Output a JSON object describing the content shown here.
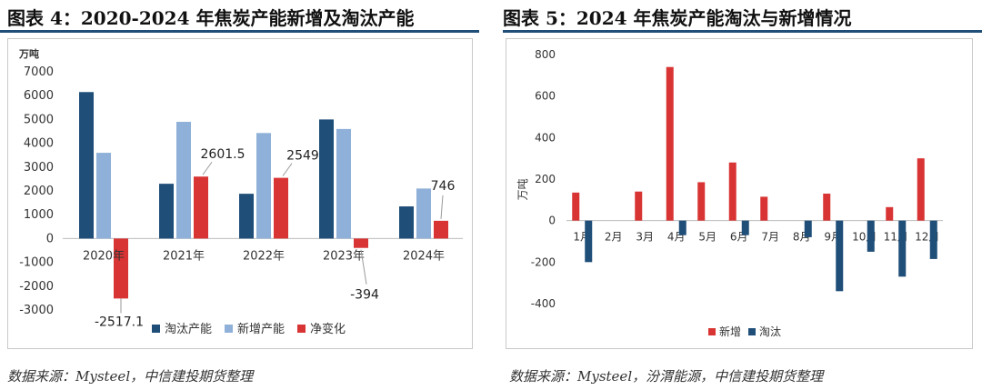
{
  "left": {
    "title": "图表 4：2020-2024 年焦炭产能新增及淘汰产能",
    "source": "数据来源：Mysteel，中信建投期货整理",
    "chart_data": {
      "type": "bar",
      "unit": "万吨",
      "categories": [
        "2020年",
        "2021年",
        "2022年",
        "2023年",
        "2024年"
      ],
      "series": [
        {
          "name": "淘汰产能",
          "color": "#1f4e79",
          "values": [
            6150,
            2300,
            1880,
            5000,
            1350
          ]
        },
        {
          "name": "新增产能",
          "color": "#8fb0d8",
          "values": [
            3600,
            4900,
            4430,
            4600,
            2100
          ]
        },
        {
          "name": "净变化",
          "color": "#d93434",
          "values": [
            -2517.1,
            2601.5,
            2549,
            -394,
            746
          ]
        }
      ],
      "callouts": [
        "-2517.1",
        "2601.5",
        "2549",
        "-394",
        "746"
      ],
      "yticks": [
        -3000,
        -2000,
        -1000,
        0,
        1000,
        2000,
        3000,
        4000,
        5000,
        6000,
        7000
      ],
      "ylim": [
        -3000,
        7000
      ],
      "legend": "bottom"
    }
  },
  "right": {
    "title": "图表 5：2024 年焦炭产能淘汰与新增情况",
    "source": "数据来源：Mysteel，汾渭能源，中信建投期货整理",
    "chart_data": {
      "type": "bar",
      "ylabel": "万吨",
      "categories": [
        "1月",
        "2月",
        "3月",
        "4月",
        "5月",
        "6月",
        "7月",
        "8月",
        "9月",
        "10月",
        "11月",
        "12月"
      ],
      "series": [
        {
          "name": "新增",
          "color": "#d93434",
          "values": [
            135,
            0,
            140,
            740,
            185,
            280,
            115,
            0,
            130,
            0,
            65,
            300
          ]
        },
        {
          "name": "淘汰",
          "color": "#1f4e79",
          "values": [
            -200,
            0,
            0,
            -70,
            0,
            -70,
            0,
            -80,
            -340,
            -150,
            -270,
            -185
          ]
        }
      ],
      "yticks": [
        -400,
        -200,
        0,
        200,
        400,
        600,
        800
      ],
      "ylim": [
        -400,
        800
      ],
      "legend": "bottom"
    }
  }
}
